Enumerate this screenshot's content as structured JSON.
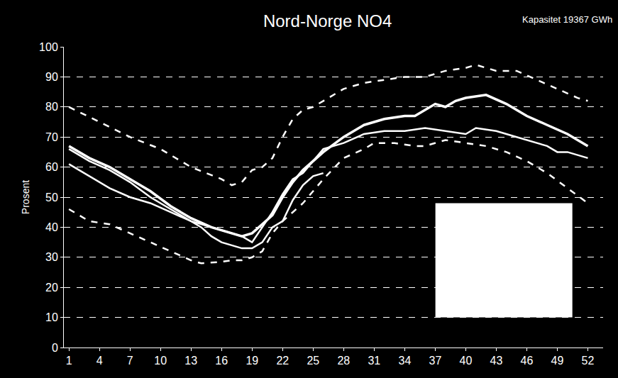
{
  "chart_data": {
    "type": "line",
    "title": "Nord-Norge NO4",
    "annotations": [
      "Kapasitet 19367 GWh"
    ],
    "y_label": "Prosent",
    "xlim": [
      0.5,
      53.5
    ],
    "xticks": [
      1,
      4,
      7,
      10,
      13,
      16,
      19,
      22,
      25,
      28,
      31,
      34,
      37,
      40,
      43,
      46,
      49,
      52
    ],
    "ylim": [
      0,
      100
    ],
    "yticks": [
      0,
      10,
      20,
      30,
      40,
      50,
      60,
      70,
      80,
      90,
      100
    ],
    "grid": true,
    "series": [
      {
        "color": "#ffffff",
        "line_style": "dash",
        "x": [
          1,
          4,
          7,
          10,
          13,
          16,
          17,
          18,
          19,
          20,
          21,
          22,
          23,
          24,
          25,
          26,
          28,
          30,
          32,
          34,
          36,
          38,
          40,
          41,
          43,
          45,
          47,
          49,
          51,
          52
        ],
        "values": [
          80,
          75,
          70,
          66,
          60,
          56,
          54,
          55,
          59,
          60,
          63,
          70,
          76,
          79,
          80,
          82,
          86,
          88,
          89,
          90,
          90,
          92,
          93,
          94,
          92,
          92,
          89,
          86,
          83,
          82
        ]
      },
      {
        "color": "#ffffff",
        "line_style": "dash",
        "x": [
          1,
          2,
          3,
          5,
          7,
          9,
          11,
          13,
          14,
          16,
          17,
          18,
          19,
          20,
          21,
          22,
          23,
          24,
          25,
          26,
          28,
          30,
          31,
          33,
          35,
          36,
          38,
          40,
          42,
          44,
          46,
          48,
          50,
          52
        ],
        "values": [
          46,
          44,
          42,
          41,
          38,
          35,
          32,
          29,
          28,
          28.5,
          29,
          29,
          30,
          32,
          38,
          42,
          45,
          48,
          52,
          56,
          63,
          66,
          68,
          68,
          67,
          67,
          69,
          68,
          67,
          65,
          62,
          58,
          53,
          48
        ]
      },
      {
        "color": "#ffffff",
        "line_style": "solid",
        "x": [
          1,
          3,
          5,
          7,
          9,
          11,
          13,
          15,
          17,
          18,
          19,
          20,
          21,
          22,
          23,
          24,
          25,
          26,
          28,
          30,
          32,
          34,
          35,
          36,
          37,
          38,
          39,
          40,
          42,
          44,
          45,
          46,
          48,
          50,
          52
        ],
        "values": [
          67,
          63,
          60,
          56,
          52,
          47,
          43,
          40,
          38,
          37,
          38,
          41,
          44,
          50,
          55,
          59,
          62,
          65,
          70,
          74,
          76,
          77,
          77,
          79,
          81,
          80,
          82,
          83,
          84,
          81,
          79,
          77,
          74,
          71,
          67
        ]
      },
      {
        "color": "#ffffff",
        "line_style": "solid",
        "x": [
          1,
          3,
          5,
          7,
          9,
          11,
          13,
          15,
          17,
          18,
          19,
          20,
          21,
          22,
          23,
          24,
          25,
          26,
          28,
          30,
          32,
          34,
          36,
          38,
          40,
          41,
          43,
          44,
          46,
          48,
          49,
          50,
          52
        ],
        "values": [
          61,
          57,
          53,
          50,
          48,
          45,
          42,
          40,
          38,
          37,
          35,
          40,
          45,
          51,
          56,
          58,
          62,
          66,
          68,
          71,
          72,
          72,
          73,
          72,
          71,
          73,
          72,
          71,
          69,
          67,
          65,
          65,
          63
        ]
      },
      {
        "color": "#ffffff",
        "line_style": "solid",
        "x": [
          1,
          3,
          5,
          7,
          9,
          11,
          13,
          14,
          15,
          16,
          17,
          18,
          19,
          20,
          21,
          22,
          23,
          24,
          25,
          26
        ],
        "values": [
          66,
          62,
          59,
          55,
          50,
          46,
          42,
          40,
          37,
          35,
          34,
          33,
          33,
          35,
          40,
          42,
          49,
          54,
          57,
          58
        ]
      }
    ]
  }
}
